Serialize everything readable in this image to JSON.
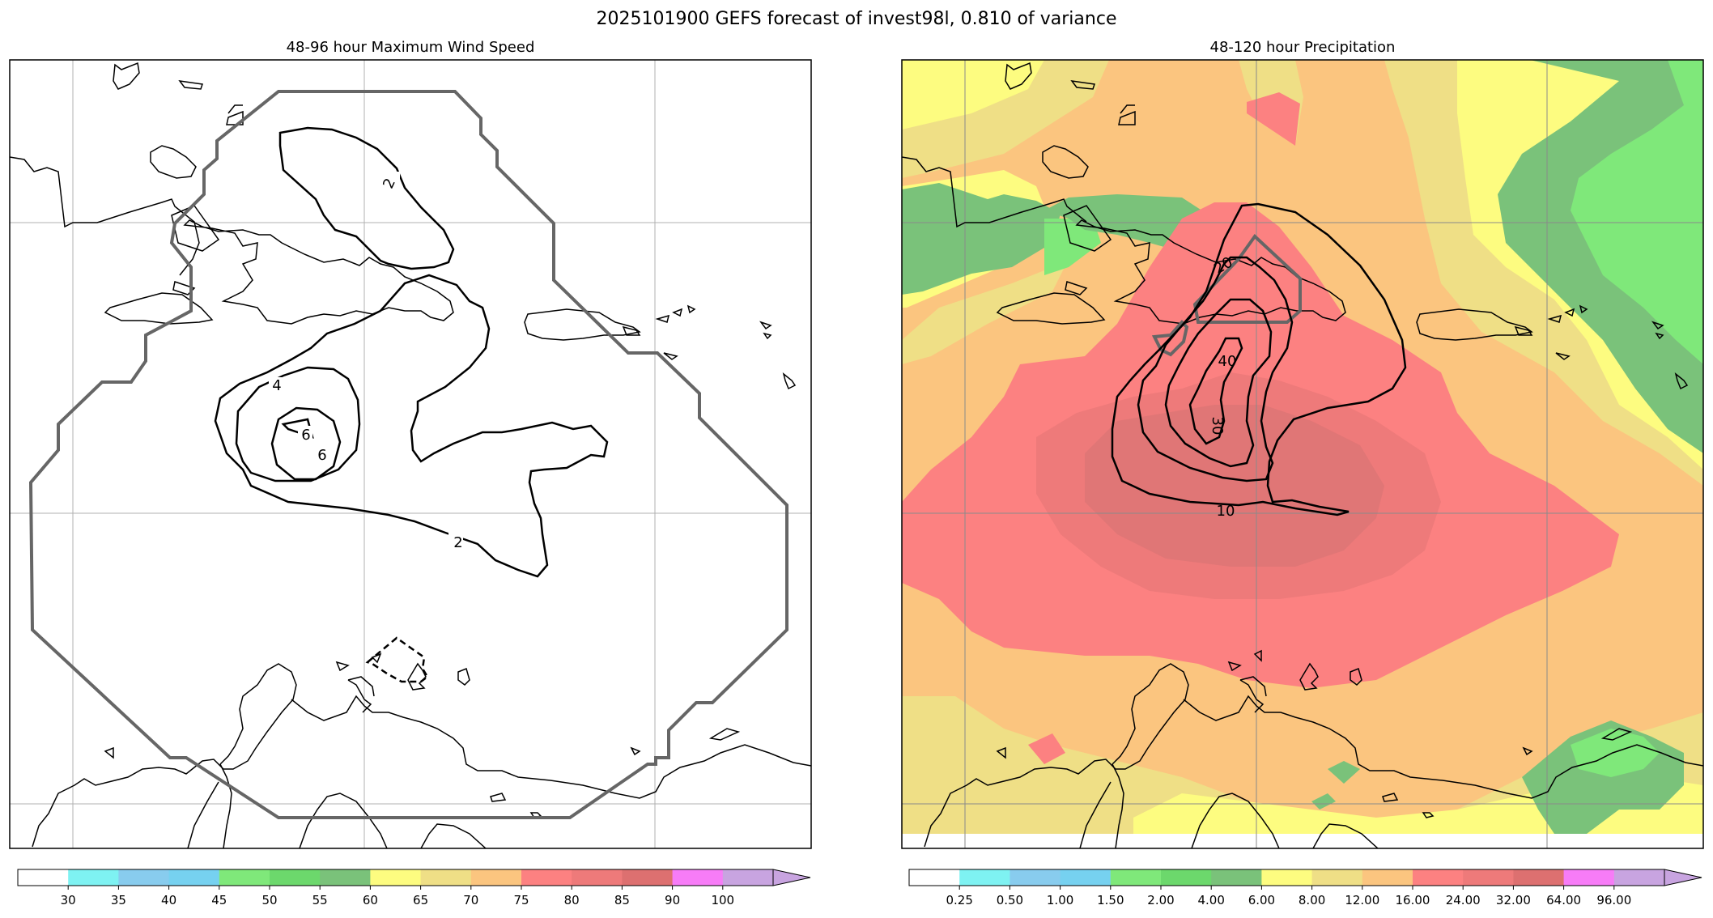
{
  "figure": {
    "suptitle": "2025101900 GEFS forecast of invest98l, 0.810 of variance"
  },
  "chart_data": [
    {
      "type": "contour",
      "title": "48-96 hour Maximum Wind Speed",
      "contour_labels": [
        "2",
        "2",
        "4",
        "6",
        "6"
      ],
      "colorbar": {
        "ticks": [
          "30",
          "35",
          "40",
          "45",
          "50",
          "55",
          "60",
          "65",
          "70",
          "75",
          "80",
          "85",
          "90",
          "100"
        ],
        "colors": [
          "#ffffff",
          "#7ef2f2",
          "#88ccee",
          "#76d1f0",
          "#7fe87a",
          "#6cd86c",
          "#7ac27a",
          "#fdfc80",
          "#efdf86",
          "#fbc57f",
          "#fc8181",
          "#ee7a7a",
          "#dd7070",
          "#f77cf7",
          "#c8a4e0"
        ]
      }
    },
    {
      "type": "filled-contour",
      "title": "48-120 hour Precipitation",
      "contour_labels": [
        "20",
        "40",
        "30",
        "10"
      ],
      "colorbar": {
        "ticks": [
          "0.25",
          "0.50",
          "1.00",
          "1.50",
          "2.00",
          "4.00",
          "6.00",
          "8.00",
          "12.00",
          "16.00",
          "24.00",
          "32.00",
          "64.00",
          "96.00"
        ],
        "colors": [
          "#ffffff",
          "#7ef2f2",
          "#88ccee",
          "#76d1f0",
          "#7fe87a",
          "#6cd86c",
          "#7ac27a",
          "#fdfc80",
          "#efdf86",
          "#fbc57f",
          "#fc8181",
          "#ee7a7a",
          "#dd7070",
          "#f77cf7",
          "#c8a4e0"
        ]
      }
    }
  ]
}
